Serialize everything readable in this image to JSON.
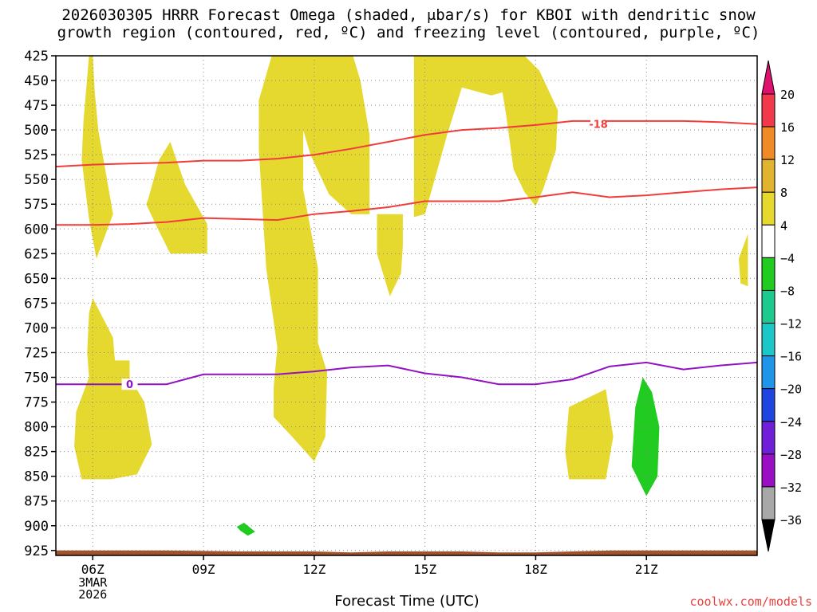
{
  "chart_data": {
    "type": "heatmap",
    "title": "2026030305 HRRR Forecast Omega (shaded, μbar/s) for KBOI with dendritic snow\ngrowth region (contoured, red, ºC) and freezing level (contoured, purple, ºC)",
    "xlabel": "Forecast Time (UTC)",
    "ylabel": "",
    "x_ticks": [
      "06Z",
      "09Z",
      "12Z",
      "15Z",
      "18Z",
      "21Z"
    ],
    "x_hours": [
      6,
      9,
      12,
      15,
      18,
      21
    ],
    "date_label": [
      "3MAR",
      "2026"
    ],
    "xlim": [
      5,
      24
    ],
    "y_ticks": [
      425,
      450,
      475,
      500,
      525,
      550,
      575,
      600,
      625,
      650,
      675,
      700,
      725,
      750,
      775,
      800,
      825,
      850,
      875,
      900,
      925
    ],
    "ylim": [
      425,
      930
    ],
    "grid": true,
    "colorbar": {
      "labels": [
        "20",
        "16",
        "12",
        "8",
        "4",
        "−4",
        "−8",
        "−12",
        "−16",
        "−20",
        "−24",
        "−28",
        "−32",
        "−36"
      ],
      "colors": [
        "#f2394c",
        "#f08a26",
        "#e0b431",
        "#e5d82e",
        "#ffffff",
        "#1fcc1f",
        "#1ec98e",
        "#1ec7c7",
        "#1f95ea",
        "#1f45e0",
        "#6f1fd8",
        "#9b0fc4",
        "#a8a8a8"
      ],
      "top_color": "#e0116e",
      "bottom_color": "#000000"
    },
    "contours": [
      {
        "name": "-18",
        "label": "-18",
        "color": "#f03c3c",
        "points": [
          [
            5,
            537
          ],
          [
            6,
            535
          ],
          [
            7,
            534
          ],
          [
            8,
            533
          ],
          [
            9,
            531
          ],
          [
            10,
            531
          ],
          [
            11,
            529
          ],
          [
            12,
            525
          ],
          [
            13,
            519
          ],
          [
            14,
            512
          ],
          [
            15,
            505
          ],
          [
            16,
            500
          ],
          [
            17,
            498
          ],
          [
            18,
            495
          ],
          [
            19,
            491
          ],
          [
            20,
            491
          ],
          [
            21,
            491
          ],
          [
            22,
            491
          ],
          [
            23,
            492
          ],
          [
            24,
            494
          ]
        ],
        "label_at": [
          19.7,
          494
        ]
      },
      {
        "name": "-12",
        "label": "",
        "color": "#f03c3c",
        "points": [
          [
            5,
            596
          ],
          [
            6,
            596
          ],
          [
            7,
            595
          ],
          [
            8,
            593
          ],
          [
            9,
            589
          ],
          [
            10,
            590
          ],
          [
            11,
            591
          ],
          [
            12,
            585
          ],
          [
            13,
            582
          ],
          [
            14,
            578
          ],
          [
            15,
            572
          ],
          [
            16,
            572
          ],
          [
            17,
            572
          ],
          [
            18,
            568
          ],
          [
            19,
            563
          ],
          [
            20,
            568
          ],
          [
            21,
            566
          ],
          [
            22,
            563
          ],
          [
            23,
            560
          ],
          [
            24,
            558
          ]
        ]
      },
      {
        "name": "0",
        "label": "0",
        "color": "#9112c2",
        "points": [
          [
            5,
            757
          ],
          [
            6,
            757
          ],
          [
            7,
            757
          ],
          [
            8,
            757
          ],
          [
            9,
            747
          ],
          [
            10,
            747
          ],
          [
            11,
            747
          ],
          [
            12,
            744
          ],
          [
            13,
            740
          ],
          [
            14,
            738
          ],
          [
            15,
            746
          ],
          [
            16,
            750
          ],
          [
            17,
            757
          ],
          [
            18,
            757
          ],
          [
            19,
            752
          ],
          [
            20,
            739
          ],
          [
            21,
            735
          ],
          [
            22,
            742
          ],
          [
            23,
            738
          ],
          [
            24,
            735
          ]
        ],
        "label_at": [
          7,
          757
        ]
      }
    ],
    "shaded_regions": [
      {
        "name": "up-1",
        "value": 4,
        "color": "#e5d82e",
        "points": [
          [
            5.9,
            425
          ],
          [
            6.0,
            425
          ],
          [
            6.05,
            460
          ],
          [
            6.15,
            500
          ],
          [
            6.55,
            585
          ],
          [
            6.1,
            630
          ],
          [
            5.9,
            590
          ],
          [
            5.7,
            530
          ],
          [
            5.75,
            490
          ]
        ]
      },
      {
        "name": "up-2",
        "value": 4,
        "color": "#e5d82e",
        "points": [
          [
            7.5,
            570
          ],
          [
            7.8,
            530
          ],
          [
            8.1,
            512
          ],
          [
            8.5,
            555
          ],
          [
            9.1,
            595
          ],
          [
            9.1,
            625
          ],
          [
            8.1,
            625
          ],
          [
            7.7,
            595
          ],
          [
            7.45,
            575
          ]
        ]
      },
      {
        "name": "up-3",
        "value": 4,
        "color": "#e5d82e",
        "points": [
          [
            5.9,
            685
          ],
          [
            6.0,
            670
          ],
          [
            6.55,
            710
          ],
          [
            6.6,
            733
          ],
          [
            7.0,
            733
          ],
          [
            7.0,
            750
          ],
          [
            7.4,
            775
          ],
          [
            7.6,
            818
          ],
          [
            7.2,
            848
          ],
          [
            6.5,
            853
          ],
          [
            5.7,
            853
          ],
          [
            5.5,
            820
          ],
          [
            5.55,
            785
          ],
          [
            5.9,
            750
          ],
          [
            5.85,
            725
          ]
        ]
      },
      {
        "name": "up-4",
        "value": 4,
        "color": "#e5d82e",
        "points": [
          [
            10.85,
            425
          ],
          [
            12.0,
            425
          ],
          [
            12.5,
            425
          ],
          [
            13.05,
            425
          ],
          [
            13.25,
            450
          ],
          [
            13.5,
            505
          ],
          [
            13.5,
            585
          ],
          [
            13.0,
            585
          ],
          [
            12.4,
            565
          ],
          [
            11.9,
            525
          ],
          [
            11.7,
            500
          ],
          [
            11.7,
            560
          ],
          [
            12.1,
            640
          ],
          [
            12.1,
            715
          ],
          [
            12.35,
            745
          ],
          [
            12.3,
            810
          ],
          [
            12.0,
            835
          ],
          [
            11.4,
            810
          ],
          [
            10.9,
            790
          ],
          [
            10.9,
            760
          ],
          [
            11.0,
            720
          ],
          [
            10.7,
            640
          ],
          [
            10.5,
            520
          ],
          [
            10.5,
            470
          ]
        ]
      },
      {
        "name": "up-5",
        "value": 4,
        "color": "#e5d82e",
        "points": [
          [
            13.7,
            585
          ],
          [
            14.4,
            585
          ],
          [
            14.4,
            617
          ],
          [
            14.35,
            645
          ],
          [
            14.05,
            668
          ],
          [
            13.7,
            625
          ]
        ]
      },
      {
        "name": "up-6",
        "value": 4,
        "color": "#e5d82e",
        "points": [
          [
            14.7,
            425
          ],
          [
            15.9,
            425
          ],
          [
            16.8,
            425
          ],
          [
            17.7,
            425
          ],
          [
            18.1,
            440
          ],
          [
            18.6,
            480
          ],
          [
            18.55,
            520
          ],
          [
            18.2,
            560
          ],
          [
            18.0,
            577
          ],
          [
            17.7,
            563
          ],
          [
            17.4,
            540
          ],
          [
            17.2,
            485
          ],
          [
            17.1,
            462
          ],
          [
            16.8,
            465
          ],
          [
            16.0,
            457
          ],
          [
            15.6,
            505
          ],
          [
            15.0,
            585
          ],
          [
            14.7,
            588
          ],
          [
            14.7,
            520
          ]
        ]
      },
      {
        "name": "up-7",
        "value": 4,
        "color": "#e5d82e",
        "points": [
          [
            18.9,
            780
          ],
          [
            19.9,
            762
          ],
          [
            20.1,
            810
          ],
          [
            19.9,
            853
          ],
          [
            18.9,
            853
          ],
          [
            18.8,
            825
          ]
        ]
      },
      {
        "name": "up-8",
        "value": 4,
        "color": "#e5d82e",
        "points": [
          [
            23.75,
            647
          ],
          [
            23.75,
            605
          ],
          [
            23.5,
            630
          ],
          [
            23.55,
            655
          ],
          [
            23.75,
            658
          ]
        ]
      },
      {
        "name": "down-1",
        "value": -4,
        "color": "#1fcc1f",
        "points": [
          [
            20.9,
            750
          ],
          [
            21.15,
            765
          ],
          [
            21.35,
            800
          ],
          [
            21.3,
            850
          ],
          [
            21.0,
            870
          ],
          [
            20.6,
            840
          ],
          [
            20.7,
            780
          ]
        ]
      },
      {
        "name": "down-2",
        "value": -4,
        "color": "#1fcc1f",
        "points": [
          [
            10.0,
            905
          ],
          [
            10.2,
            910
          ],
          [
            10.4,
            906
          ],
          [
            10.1,
            897
          ],
          [
            9.9,
            901
          ]
        ]
      }
    ],
    "surface": {
      "color": "#a0522d",
      "points": [
        [
          5,
          925
        ],
        [
          8,
          925
        ],
        [
          10,
          926
        ],
        [
          12,
          926
        ],
        [
          13,
          927
        ],
        [
          14,
          926
        ],
        [
          15,
          926
        ],
        [
          16,
          926
        ],
        [
          17,
          927
        ],
        [
          18,
          927
        ],
        [
          19,
          926
        ],
        [
          20,
          925
        ],
        [
          22,
          925
        ],
        [
          24,
          925
        ]
      ]
    }
  },
  "footer": {
    "credit": "coolwx.com/models"
  }
}
